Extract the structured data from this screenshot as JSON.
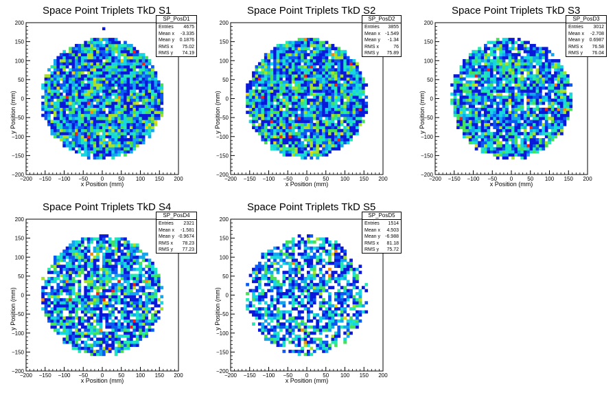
{
  "chart_data": [
    {
      "type": "heatmap",
      "title": "Space Point Triplets TkD S1",
      "xlabel": "x Position (mm)",
      "ylabel": "y Position (mm)",
      "xlim": [
        -200,
        200
      ],
      "ylim": [
        -200,
        200
      ],
      "xticks": [
        "−200",
        "−150",
        "−100",
        "−50",
        "0",
        "50",
        "100",
        "150",
        "200"
      ],
      "yticks": [
        "200",
        "150",
        "100",
        "50",
        "0",
        "−50",
        "−100",
        "−150",
        "−200"
      ],
      "stats": {
        "name": "SP_PosD1",
        "rows": [
          {
            "label": "Entries",
            "value": "4675"
          },
          {
            "label": "Mean x",
            "value": "-3.335"
          },
          {
            "label": "Mean y",
            "value": "0.1876"
          },
          {
            "label": "RMS x",
            "value": "75.02"
          },
          {
            "label": "RMS y",
            "value": "74.19"
          }
        ]
      },
      "fill_fraction": 0.98,
      "intensity": 0.36,
      "seed": 11,
      "outliers": [
        [
          0,
          180
        ]
      ]
    },
    {
      "type": "heatmap",
      "title": "Space Point Triplets TkD S2",
      "xlabel": "x Position (mm)",
      "ylabel": "y Position (mm)",
      "xlim": [
        -200,
        200
      ],
      "ylim": [
        -200,
        200
      ],
      "xticks": [
        "−200",
        "−150",
        "−100",
        "−50",
        "0",
        "50",
        "100",
        "150",
        "200"
      ],
      "yticks": [
        "200",
        "150",
        "100",
        "50",
        "0",
        "−50",
        "−100",
        "−150",
        "−200"
      ],
      "stats": {
        "name": "SP_PosD2",
        "rows": [
          {
            "label": "Entries",
            "value": "3855"
          },
          {
            "label": "Mean x",
            "value": "-1.549"
          },
          {
            "label": "Mean y",
            "value": "-1.34"
          },
          {
            "label": "RMS x",
            "value": "76"
          },
          {
            "label": "RMS y",
            "value": "75.89"
          }
        ]
      },
      "fill_fraction": 0.96,
      "intensity": 0.34,
      "seed": 23,
      "outliers": []
    },
    {
      "type": "heatmap",
      "title": "Space Point Triplets TkD S3",
      "xlabel": "x Position (mm)",
      "ylabel": "y Position (mm)",
      "xlim": [
        -200,
        200
      ],
      "ylim": [
        -200,
        200
      ],
      "xticks": [
        "−200",
        "−150",
        "−100",
        "−50",
        "0",
        "50",
        "100",
        "150",
        "200"
      ],
      "yticks": [
        "200",
        "150",
        "100",
        "50",
        "0",
        "−50",
        "−100",
        "−150",
        "−200"
      ],
      "stats": {
        "name": "SP_PosD3",
        "rows": [
          {
            "label": "Entries",
            "value": "3012"
          },
          {
            "label": "Mean x",
            "value": "-2.708"
          },
          {
            "label": "Mean y",
            "value": "0.6987"
          },
          {
            "label": "RMS x",
            "value": "76.58"
          },
          {
            "label": "RMS y",
            "value": "76.04"
          }
        ]
      },
      "fill_fraction": 0.9,
      "intensity": 0.3,
      "seed": 37,
      "outliers": []
    },
    {
      "type": "heatmap",
      "title": "Space Point Triplets TkD S4",
      "xlabel": "x Position (mm)",
      "ylabel": "y Position (mm)",
      "xlim": [
        -200,
        200
      ],
      "ylim": [
        -200,
        200
      ],
      "xticks": [
        "−200",
        "−150",
        "−100",
        "−50",
        "0",
        "50",
        "100",
        "150",
        "200"
      ],
      "yticks": [
        "200",
        "150",
        "100",
        "50",
        "0",
        "−50",
        "−100",
        "−150",
        "−200"
      ],
      "stats": {
        "name": "SP_PosD4",
        "rows": [
          {
            "label": "Entries",
            "value": "2321"
          },
          {
            "label": "Mean x",
            "value": "-1.581"
          },
          {
            "label": "Mean y",
            "value": "-0.9674"
          },
          {
            "label": "RMS x",
            "value": "78.23"
          },
          {
            "label": "RMS y",
            "value": "77.23"
          }
        ]
      },
      "fill_fraction": 0.82,
      "intensity": 0.27,
      "seed": 41,
      "outliers": []
    },
    {
      "type": "heatmap",
      "title": "Space Point Triplets TkD S5",
      "xlabel": "x Position (mm)",
      "ylabel": "y Position (mm)",
      "xlim": [
        -200,
        200
      ],
      "ylim": [
        -200,
        200
      ],
      "xticks": [
        "−200",
        "−150",
        "−100",
        "−50",
        "0",
        "50",
        "100",
        "150",
        "200"
      ],
      "yticks": [
        "200",
        "150",
        "100",
        "50",
        "0",
        "−50",
        "−100",
        "−150",
        "−200"
      ],
      "stats": {
        "name": "SP_PosD5",
        "rows": [
          {
            "label": "Entries",
            "value": "1514"
          },
          {
            "label": "Mean x",
            "value": "4.503"
          },
          {
            "label": "Mean y",
            "value": "-6.988"
          },
          {
            "label": "RMS x",
            "value": "81.18"
          },
          {
            "label": "RMS y",
            "value": "75.72"
          }
        ]
      },
      "fill_fraction": 0.62,
      "intensity": 0.22,
      "seed": 53,
      "outliers": []
    }
  ],
  "colors": {
    "palette": [
      "#0a18d9",
      "#0b59f0",
      "#13a6ee",
      "#17d6e2",
      "#22e8b4",
      "#47e05a",
      "#a6e22c",
      "#e6d61c",
      "#f28a13",
      "#e8241d"
    ],
    "axis": "#000000",
    "background": "#ffffff"
  }
}
